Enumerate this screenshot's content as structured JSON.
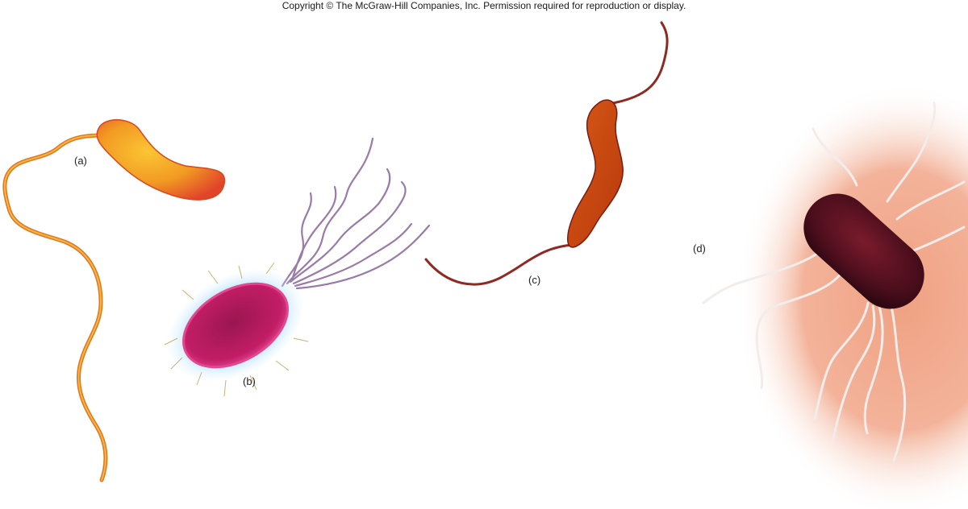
{
  "copyright": "Copyright © The McGraw-Hill Companies, Inc. Permission required for reproduction or display.",
  "labels": {
    "a": "(a)",
    "b": "(b)",
    "c": "(c)",
    "d": "(d)"
  },
  "colors": {
    "bacterium_a": "#f08a1c",
    "bacterium_b": "#b8185f",
    "bacterium_c": "#c8460f",
    "bacterium_d": "#5a1222",
    "background_d": "#f2a98a"
  }
}
